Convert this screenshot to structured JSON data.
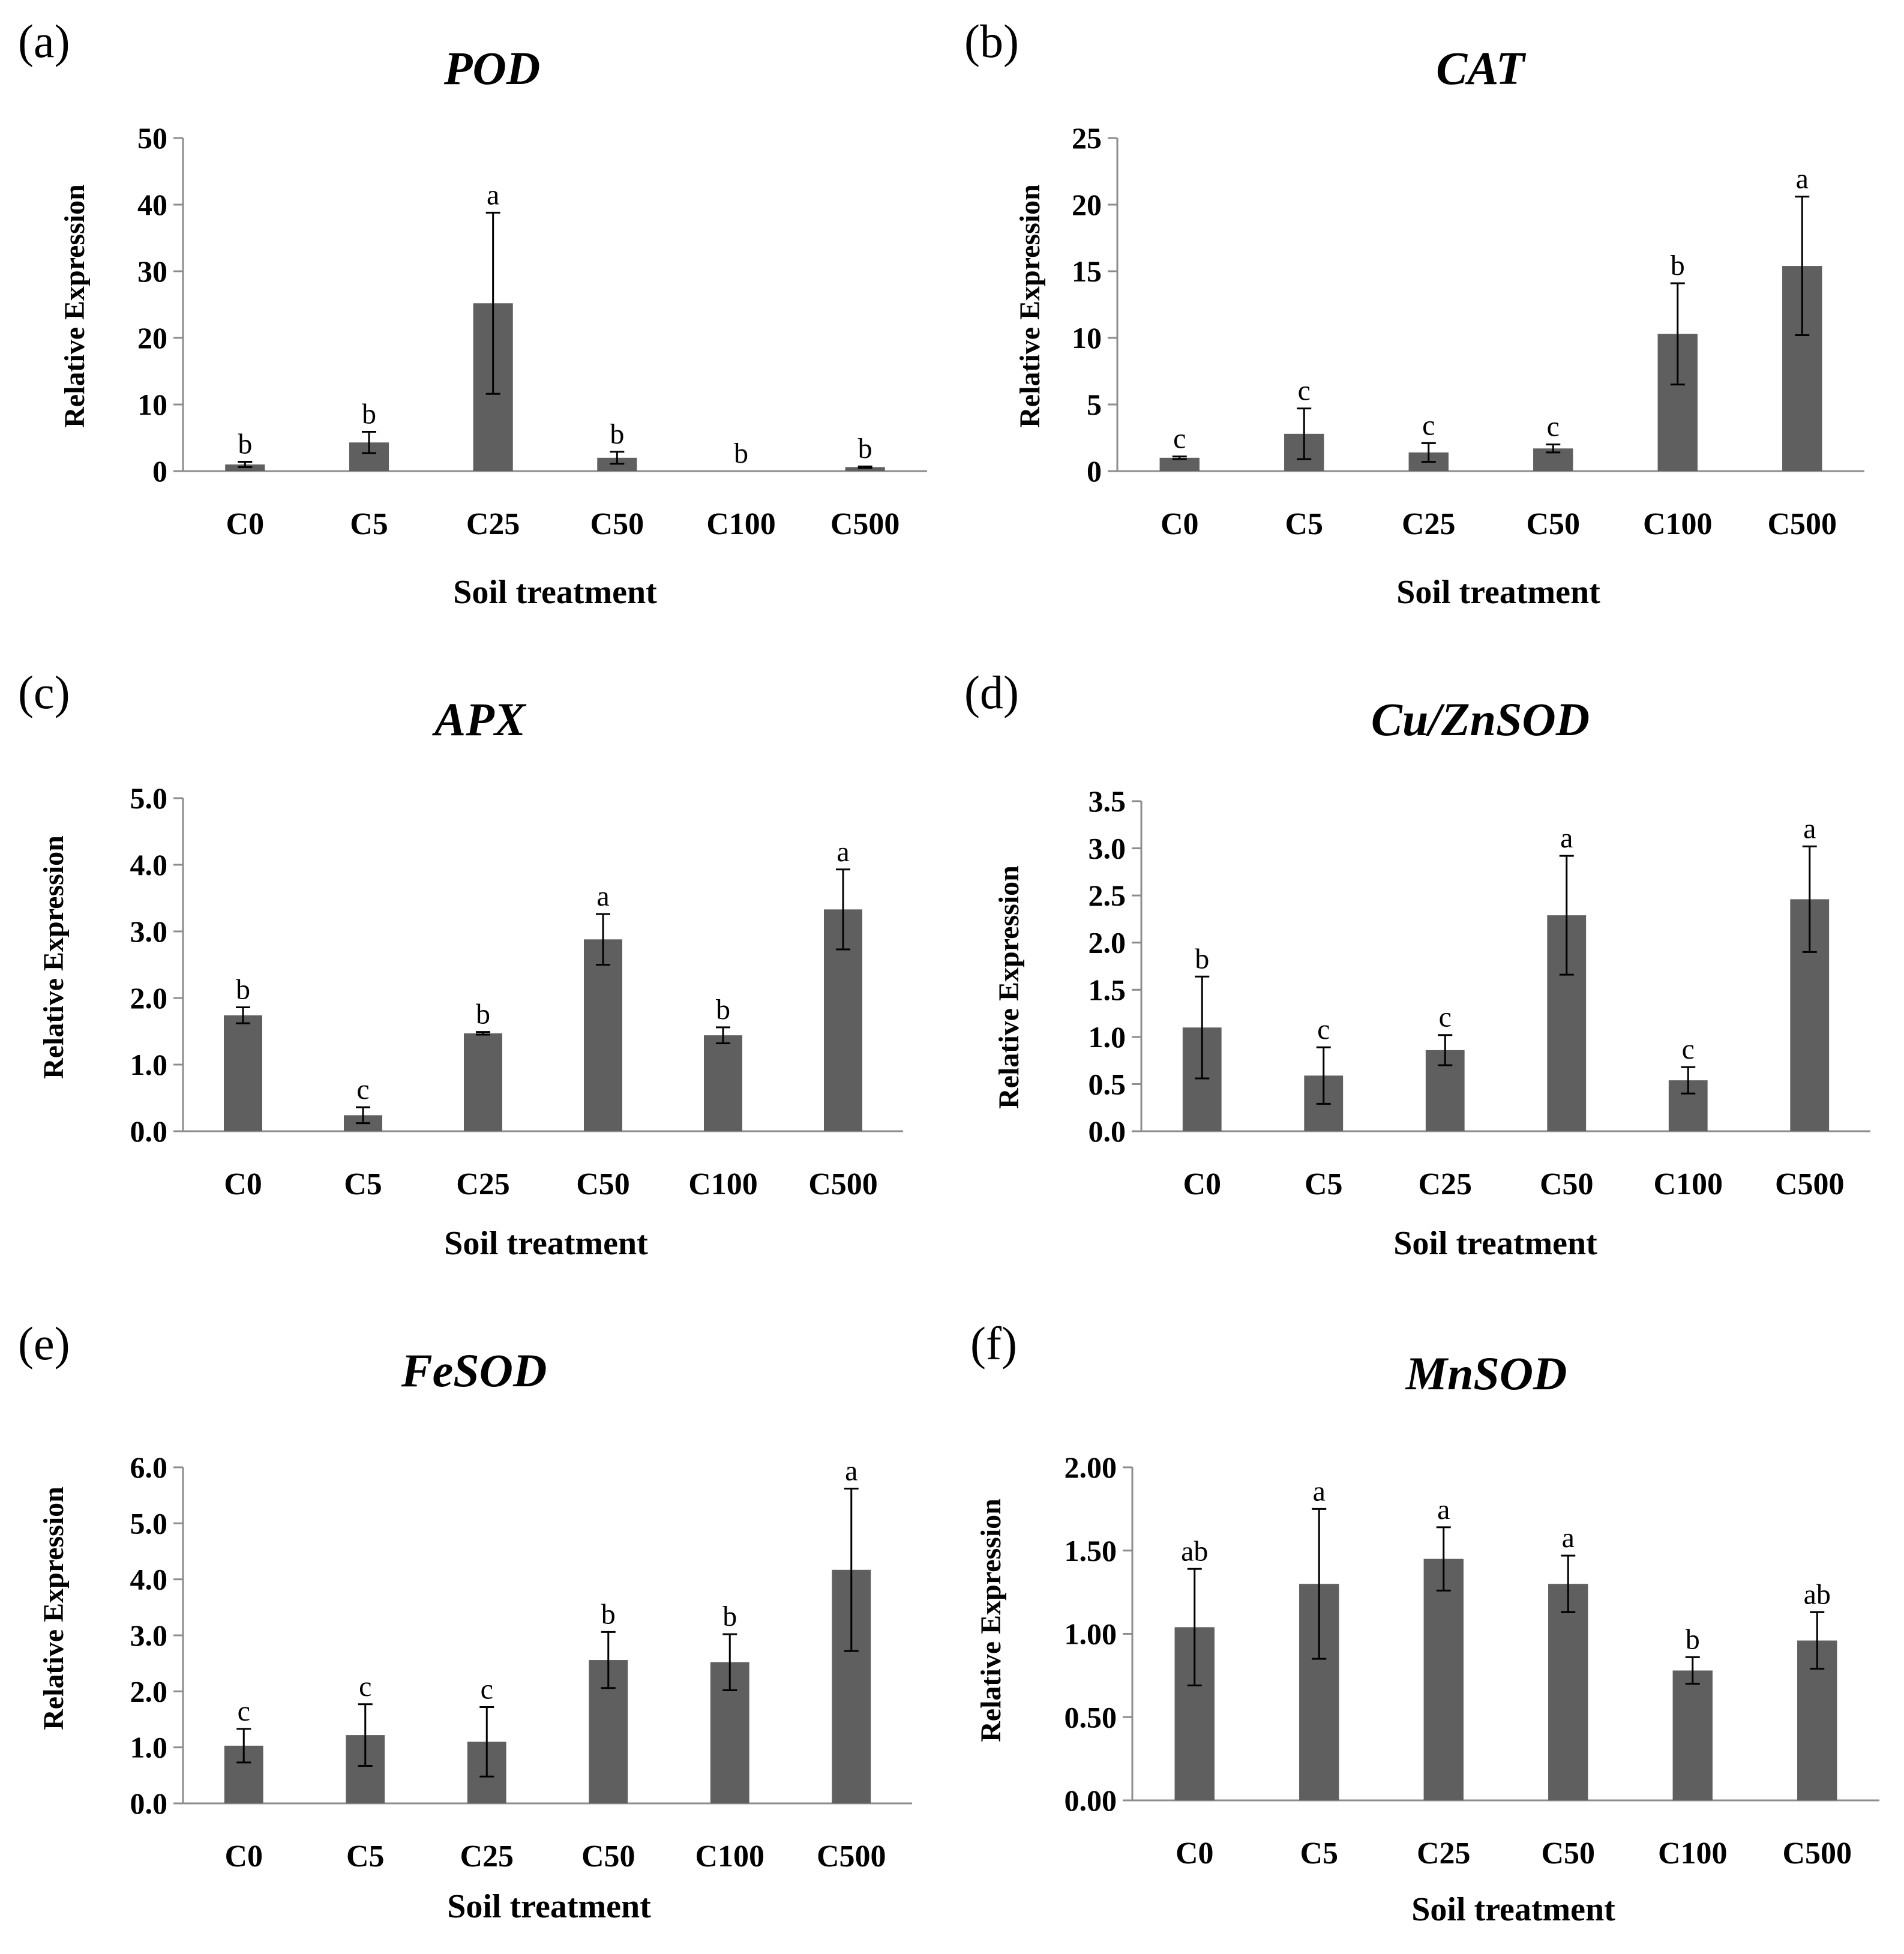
{
  "colors": {
    "bar": "#5f5f5f",
    "axis": "#8c8c8c",
    "error": "#000000",
    "text": "#000000"
  },
  "chart_data": [
    {
      "type": "bar",
      "panel": "(a)",
      "title": "POD",
      "xlabel": "Soil treatment",
      "ylabel": "Relative Expression",
      "categories": [
        "C0",
        "C5",
        "C25",
        "C50",
        "C100",
        "C500"
      ],
      "values": [
        1.0,
        4.3,
        25.2,
        2.0,
        0.0,
        0.6
      ],
      "errors": [
        0.4,
        1.6,
        13.6,
        0.9,
        0.0,
        0.1
      ],
      "sig": [
        "b",
        "b",
        "a",
        "b",
        "b",
        "b"
      ],
      "ylim": [
        0,
        50
      ],
      "yticks": [
        0,
        10,
        20,
        30,
        40,
        50
      ],
      "ytick_labels": [
        "0",
        "10",
        "20",
        "30",
        "40",
        "50"
      ]
    },
    {
      "type": "bar",
      "panel": "(b)",
      "title": "CAT",
      "xlabel": "Soil treatment",
      "ylabel": "Relative Expression",
      "categories": [
        "C0",
        "C5",
        "C25",
        "C50",
        "C100",
        "C500"
      ],
      "values": [
        1.0,
        2.8,
        1.4,
        1.7,
        10.3,
        15.4
      ],
      "errors": [
        0.1,
        1.9,
        0.7,
        0.3,
        3.8,
        5.2
      ],
      "sig": [
        "c",
        "c",
        "c",
        "c",
        "b",
        "a"
      ],
      "ylim": [
        0,
        25
      ],
      "yticks": [
        0,
        5,
        10,
        15,
        20,
        25
      ],
      "ytick_labels": [
        "0",
        "5",
        "10",
        "15",
        "20",
        "25"
      ]
    },
    {
      "type": "bar",
      "panel": "(c)",
      "title": "APX",
      "xlabel": "Soil treatment",
      "ylabel": "Relative Expression",
      "categories": [
        "C0",
        "C5",
        "C25",
        "C50",
        "C100",
        "C500"
      ],
      "values": [
        1.74,
        0.24,
        1.47,
        2.88,
        1.44,
        3.33
      ],
      "errors": [
        0.12,
        0.12,
        0.02,
        0.38,
        0.12,
        0.6
      ],
      "sig": [
        "b",
        "c",
        "b",
        "a",
        "b",
        "a"
      ],
      "ylim": [
        0,
        5
      ],
      "yticks": [
        0,
        1,
        2,
        3,
        4,
        5
      ],
      "ytick_labels": [
        "0.0",
        "1.0",
        "2.0",
        "3.0",
        "4.0",
        "5.0"
      ]
    },
    {
      "type": "bar",
      "panel": "(d)",
      "title": "Cu/ZnSOD",
      "xlabel": "Soil treatment",
      "ylabel": "Relative Expression",
      "categories": [
        "C0",
        "C5",
        "C25",
        "C50",
        "C100",
        "C500"
      ],
      "values": [
        1.1,
        0.59,
        0.86,
        2.29,
        0.54,
        2.46
      ],
      "errors": [
        0.54,
        0.3,
        0.16,
        0.63,
        0.14,
        0.56
      ],
      "sig": [
        "b",
        "c",
        "c",
        "a",
        "c",
        "a"
      ],
      "ylim": [
        0,
        3.5
      ],
      "yticks": [
        0,
        0.5,
        1,
        1.5,
        2,
        2.5,
        3,
        3.5
      ],
      "ytick_labels": [
        "0.0",
        "0.5",
        "1.0",
        "1.5",
        "2.0",
        "2.5",
        "3.0",
        "3.5"
      ]
    },
    {
      "type": "bar",
      "panel": "(e)",
      "title": "FeSOD",
      "xlabel": "Soil treatment",
      "ylabel": "Relative Expression",
      "categories": [
        "C0",
        "C5",
        "C25",
        "C50",
        "C100",
        "C500"
      ],
      "values": [
        1.03,
        1.22,
        1.1,
        2.56,
        2.52,
        4.17
      ],
      "errors": [
        0.3,
        0.55,
        0.62,
        0.5,
        0.5,
        1.45
      ],
      "sig": [
        "c",
        "c",
        "c",
        "b",
        "b",
        "a"
      ],
      "ylim": [
        0,
        6
      ],
      "yticks": [
        0,
        1,
        2,
        3,
        4,
        5,
        6
      ],
      "ytick_labels": [
        "0.0",
        "1.0",
        "2.0",
        "3.0",
        "4.0",
        "5.0",
        "6.0"
      ]
    },
    {
      "type": "bar",
      "panel": "(f)",
      "title": "MnSOD",
      "xlabel": "Soil treatment",
      "ylabel": "Relative Expression",
      "categories": [
        "C0",
        "C5",
        "C25",
        "C50",
        "C100",
        "C500"
      ],
      "values": [
        1.04,
        1.3,
        1.45,
        1.3,
        0.78,
        0.96
      ],
      "errors": [
        0.35,
        0.45,
        0.19,
        0.17,
        0.08,
        0.17
      ],
      "sig": [
        "ab",
        "a",
        "a",
        "a",
        "b",
        "ab"
      ],
      "ylim": [
        0,
        2
      ],
      "yticks": [
        0,
        0.5,
        1,
        1.5,
        2
      ],
      "ytick_labels": [
        "0.00",
        "0.50",
        "1.00",
        "1.50",
        "2.00"
      ]
    }
  ]
}
